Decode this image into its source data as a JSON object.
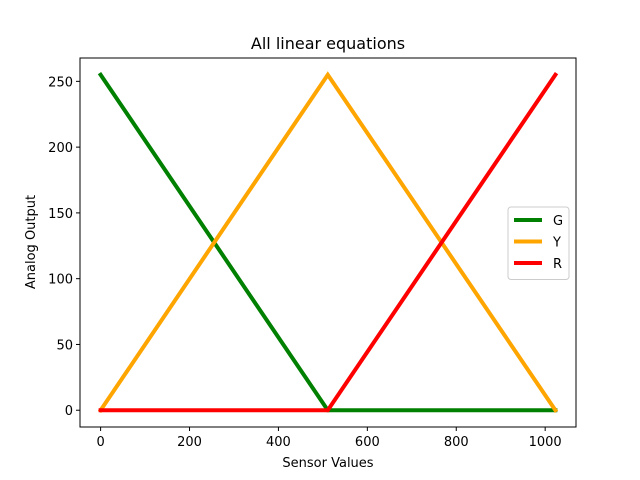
{
  "chart_data": {
    "type": "line",
    "title": "All linear equations",
    "xlabel": "Sensor Values",
    "ylabel": "Analog Output",
    "xlim": [
      -46.35,
      1069.35
    ],
    "ylim": [
      -12.75,
      267.75
    ],
    "xticks": [
      0,
      200,
      400,
      600,
      800,
      1000
    ],
    "yticks": [
      0,
      50,
      100,
      150,
      200,
      250
    ],
    "grid": false,
    "legend_position": "center-right",
    "series": [
      {
        "name": "G",
        "color": "#008000",
        "x": [
          0,
          511,
          1023
        ],
        "y": [
          255,
          0,
          0
        ]
      },
      {
        "name": "Y",
        "color": "#FFA500",
        "x": [
          0,
          511,
          1023
        ],
        "y": [
          0,
          255,
          0
        ]
      },
      {
        "name": "R",
        "color": "#FF0000",
        "x": [
          0,
          511,
          1023
        ],
        "y": [
          0,
          0,
          255
        ]
      }
    ]
  }
}
